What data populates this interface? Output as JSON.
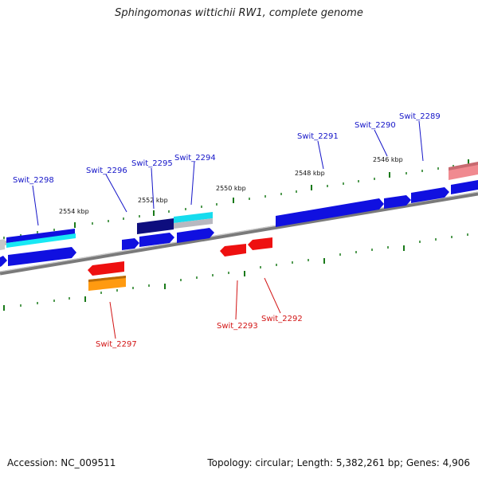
{
  "title": "Sphingomonas wittichii RW1, complete genome",
  "accession": "Accession: NC_009511",
  "summary": "Topology: circular; Length: 5,382,261 bp; Genes: 4,906",
  "colors": {
    "plus_strand_gene": "#1010e0",
    "minus_strand_gene": "#ee1010",
    "backbone": "#808080",
    "tick": "#1a7a1a",
    "plus_label": "#1414c8",
    "minus_label": "#d21414"
  },
  "scale_labels": [
    "2554 kbp",
    "2552 kbp",
    "2550 kbp",
    "2548 kbp",
    "2546 kbp"
  ],
  "genes": {
    "swit_2298": "Swit_2298",
    "swit_2296": "Swit_2296",
    "swit_2295": "Swit_2295",
    "swit_2294": "Swit_2294",
    "swit_2291": "Swit_2291",
    "swit_2290": "Swit_2290",
    "swit_2289": "Swit_2289",
    "swit_2297": "Swit_2297",
    "swit_2293": "Swit_2293",
    "swit_2292": "Swit_2292"
  }
}
